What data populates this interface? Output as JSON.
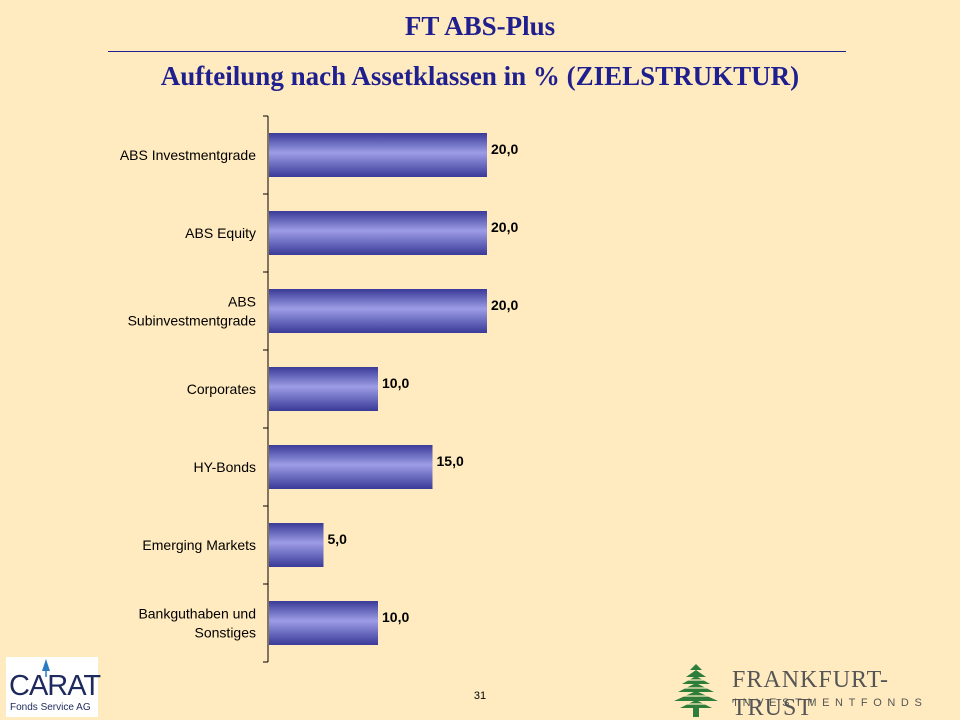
{
  "header": {
    "title": "FT ABS-Plus",
    "subtitle": "Aufteilung nach Assetklassen in % (ZIELSTRUKTUR)"
  },
  "chart_data": {
    "type": "bar",
    "orientation": "horizontal",
    "categories": [
      "ABS Investmentgrade",
      "ABS Equity",
      "ABS\nSubinvestmentgrade",
      "Corporates",
      "HY-Bonds",
      "Emerging Markets",
      "Bankguthaben und\nSonstiges"
    ],
    "values": [
      20.0,
      20.0,
      20.0,
      10.0,
      15.0,
      5.0,
      10.0
    ],
    "data_labels": [
      "20,0",
      "20,0",
      "20,0",
      "10,0",
      "15,0",
      "5,0",
      "10,0"
    ],
    "title": "",
    "xlabel": "",
    "ylabel": "",
    "xlim": [
      0,
      20
    ],
    "grid": false,
    "legend": "none",
    "bar_color": "#4A4AB0"
  },
  "footer": {
    "page_number": "31",
    "carat_logo": {
      "name": "CARAT",
      "sub": "Fonds Service AG"
    },
    "ft_logo": {
      "name": "FRANKFURT-TRUST",
      "sub": "INVESTMENTFONDS",
      "emblem": "tree-emblem-icon"
    }
  },
  "colors": {
    "background": "#FFEBBF",
    "title": "#1F1F8F",
    "bar": "#4A4AB0",
    "logo_green": "#2E7D3A"
  }
}
